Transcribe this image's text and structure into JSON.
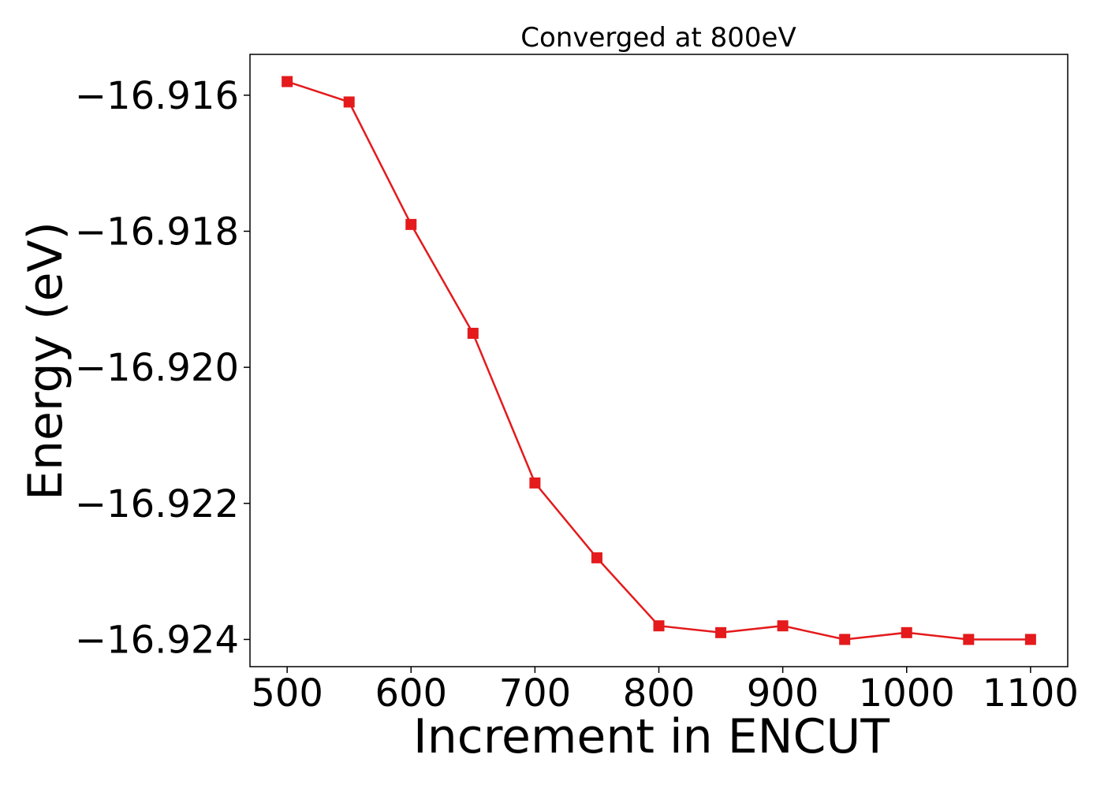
{
  "chart_data": {
    "type": "line",
    "title": "Converged at 800eV",
    "xlabel": "Increment in ENCUT",
    "ylabel": "Energy (eV)",
    "xlim": [
      470,
      1130
    ],
    "ylim": [
      -16.9244,
      -16.9154
    ],
    "x_ticks": [
      500,
      600,
      700,
      800,
      900,
      1000,
      1100
    ],
    "x_tick_labels": [
      "500",
      "600",
      "700",
      "800",
      "900",
      "1000",
      "1100"
    ],
    "y_ticks": [
      -16.916,
      -16.918,
      -16.92,
      -16.922,
      -16.924
    ],
    "y_tick_labels": [
      "−16.916",
      "−16.918",
      "−16.920",
      "−16.922",
      "−16.924"
    ],
    "grid": false,
    "series": [
      {
        "color": "#e41a1c",
        "marker": "square",
        "x": [
          500,
          550,
          600,
          650,
          700,
          750,
          800,
          850,
          900,
          950,
          1000,
          1050,
          1100
        ],
        "y": [
          -16.9158,
          -16.9161,
          -16.9179,
          -16.9195,
          -16.9217,
          -16.9228,
          -16.9238,
          -16.9239,
          -16.9238,
          -16.924,
          -16.9239,
          -16.924,
          -16.924
        ]
      }
    ]
  }
}
